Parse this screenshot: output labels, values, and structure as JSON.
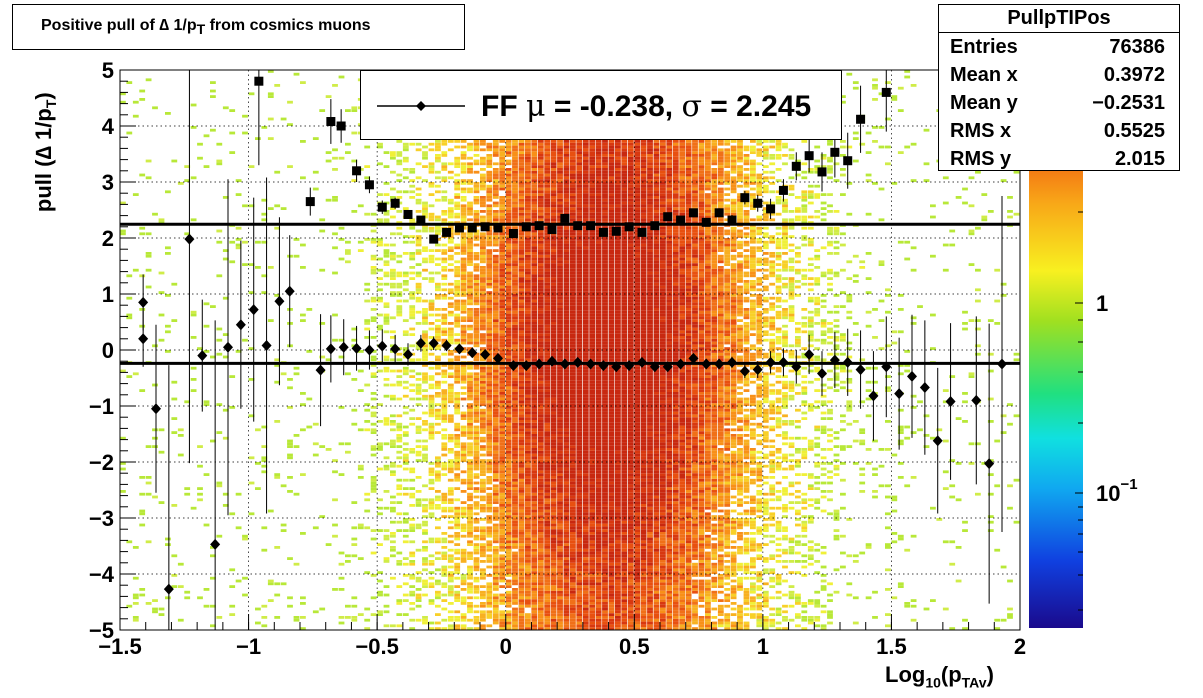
{
  "title_parts": {
    "pre": "Positive pull of ",
    "delta": "∆",
    "mid": " 1/p",
    "sub": "T",
    "post": " from cosmics muons"
  },
  "stats": {
    "name": "PullpTIPos",
    "rows": [
      {
        "label": "Entries",
        "value": "76386"
      },
      {
        "label": "Mean x",
        "value": "0.3972"
      },
      {
        "label": "Mean y",
        "value": "−0.2531"
      },
      {
        "label": "RMS x",
        "value": "0.5525"
      },
      {
        "label": "RMS y",
        "value": "2.015"
      }
    ]
  },
  "legend": {
    "pre": "FF ",
    "mu": "μ",
    "mid": " = -0.238, ",
    "sigma": "σ",
    "post": " =   2.245"
  },
  "xaxis_label": {
    "main": "Log",
    "sub1": "10",
    "mid": "(p",
    "sub2": "TAv",
    "end": ")"
  },
  "yaxis_label": {
    "pre": "pull (",
    "delta": "∆",
    "mid": " 1/p",
    "sub": "T",
    "end": ")"
  },
  "colors": {
    "marker": "#000000",
    "fit_line": "#000000"
  },
  "chart_data": {
    "type": "scatter",
    "xlim": [
      -1.5,
      2
    ],
    "ylim": [
      -5,
      5
    ],
    "x_ticks": [
      "−1.5",
      "−1",
      "−0.5",
      "0",
      "0.5",
      "1",
      "1.5",
      "2"
    ],
    "y_ticks": [
      "−5",
      "−4",
      "−3",
      "−2",
      "−1",
      "0",
      "1",
      "2",
      "3",
      "4",
      "5"
    ],
    "grid": true,
    "colorbar_ticks": [
      "10−1",
      "1"
    ],
    "fit_lines": {
      "mean": -0.238,
      "sigma": 2.245
    },
    "series": [
      {
        "marker": "square",
        "x": [
          -0.96,
          -0.76,
          -0.68,
          -0.64,
          -0.58,
          -0.53,
          -0.48,
          -0.43,
          -0.38,
          -0.33,
          -0.28,
          -0.23,
          -0.18,
          -0.13,
          -0.08,
          -0.03,
          0.03,
          0.08,
          0.13,
          0.18,
          0.23,
          0.28,
          0.33,
          0.38,
          0.43,
          0.48,
          0.53,
          0.58,
          0.63,
          0.68,
          0.73,
          0.78,
          0.83,
          0.88,
          0.93,
          0.98,
          1.03,
          1.08,
          1.13,
          1.18,
          1.23,
          1.28,
          1.33,
          1.38,
          1.48
        ],
        "y": [
          4.8,
          2.65,
          4.08,
          4.0,
          3.2,
          2.95,
          2.55,
          2.62,
          2.42,
          2.32,
          1.98,
          2.1,
          2.18,
          2.18,
          2.2,
          2.18,
          2.08,
          2.2,
          2.22,
          2.15,
          2.35,
          2.22,
          2.22,
          2.1,
          2.12,
          2.2,
          2.1,
          2.22,
          2.38,
          2.32,
          2.45,
          2.28,
          2.45,
          2.32,
          2.72,
          2.62,
          2.52,
          2.85,
          3.28,
          3.47,
          3.18,
          3.53,
          3.38,
          4.12,
          4.6
        ],
        "err": [
          1.5,
          0.25,
          0.4,
          0.3,
          0.2,
          0.15,
          0.12,
          0.1,
          0.08,
          0.07,
          0.06,
          0.05,
          0.05,
          0.05,
          0.05,
          0.05,
          0.05,
          0.05,
          0.05,
          0.05,
          0.05,
          0.05,
          0.05,
          0.05,
          0.05,
          0.05,
          0.05,
          0.05,
          0.05,
          0.05,
          0.06,
          0.07,
          0.08,
          0.09,
          0.12,
          0.15,
          0.18,
          0.2,
          0.25,
          0.3,
          0.35,
          0.45,
          0.5,
          0.6,
          0.7
        ]
      },
      {
        "marker": "diamond",
        "x": [
          -1.41,
          -1.41,
          -1.36,
          -1.31,
          -1.23,
          -1.18,
          -1.13,
          -1.08,
          -1.03,
          -0.98,
          -0.93,
          -0.88,
          -0.84,
          -0.72,
          -0.68,
          -0.63,
          -0.58,
          -0.53,
          -0.48,
          -0.43,
          -0.38,
          -0.33,
          -0.28,
          -0.23,
          -0.18,
          -0.13,
          -0.08,
          -0.03,
          0.03,
          0.08,
          0.13,
          0.18,
          0.23,
          0.28,
          0.33,
          0.38,
          0.43,
          0.48,
          0.53,
          0.58,
          0.63,
          0.68,
          0.73,
          0.78,
          0.83,
          0.88,
          0.93,
          0.98,
          1.03,
          1.08,
          1.13,
          1.18,
          1.23,
          1.28,
          1.33,
          1.38,
          1.43,
          1.48,
          1.53,
          1.58,
          1.63,
          1.68,
          1.73,
          1.83,
          1.88,
          1.93
        ],
        "y": [
          0.85,
          0.2,
          -1.05,
          -4.27,
          1.98,
          -0.1,
          -3.47,
          0.05,
          0.45,
          0.72,
          0.08,
          0.87,
          1.05,
          -0.36,
          0.02,
          0.05,
          0.03,
          0.0,
          0.07,
          0.02,
          -0.08,
          0.12,
          0.12,
          0.08,
          0.02,
          -0.05,
          -0.08,
          -0.15,
          -0.28,
          -0.28,
          -0.25,
          -0.2,
          -0.25,
          -0.22,
          -0.25,
          -0.28,
          -0.3,
          -0.28,
          -0.22,
          -0.3,
          -0.3,
          -0.25,
          -0.15,
          -0.25,
          -0.25,
          -0.22,
          -0.38,
          -0.35,
          -0.22,
          -0.22,
          -0.3,
          -0.08,
          -0.42,
          -0.18,
          -0.22,
          -0.35,
          -0.82,
          -0.3,
          -0.78,
          -0.47,
          -0.67,
          -1.62,
          -0.92,
          -0.9,
          -2.03,
          -0.25
        ],
        "err": [
          0.5,
          0.5,
          1.5,
          4.0,
          4.0,
          1.0,
          4.0,
          3.0,
          1.5,
          2.0,
          3.0,
          1.5,
          1.0,
          1.0,
          0.6,
          0.5,
          0.4,
          0.35,
          0.3,
          0.25,
          0.2,
          0.15,
          0.12,
          0.1,
          0.08,
          0.07,
          0.06,
          0.05,
          0.05,
          0.05,
          0.05,
          0.05,
          0.05,
          0.05,
          0.05,
          0.05,
          0.05,
          0.05,
          0.05,
          0.05,
          0.05,
          0.05,
          0.06,
          0.07,
          0.08,
          0.1,
          0.12,
          0.15,
          0.2,
          0.25,
          0.3,
          0.35,
          0.4,
          0.5,
          0.6,
          0.7,
          0.8,
          0.9,
          1.0,
          1.1,
          1.2,
          1.3,
          1.4,
          1.5,
          2.5,
          3.0
        ]
      }
    ]
  }
}
